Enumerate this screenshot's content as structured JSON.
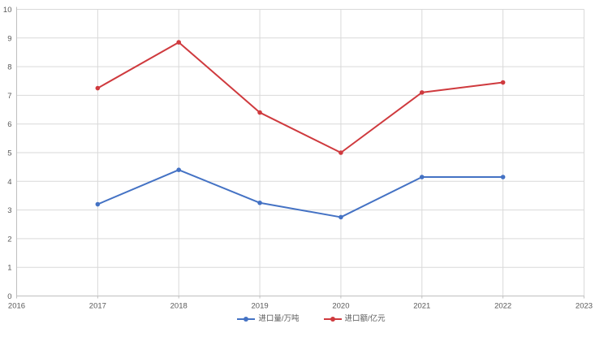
{
  "chart_data": {
    "type": "line",
    "title": "",
    "xlabel": "",
    "ylabel": "",
    "x": [
      2017,
      2018,
      2019,
      2020,
      2021,
      2022
    ],
    "series": [
      {
        "name": "进口量/万吨",
        "color": "#4472C4",
        "values": [
          3.2,
          4.4,
          3.25,
          2.75,
          4.15,
          4.15
        ]
      },
      {
        "name": "进口额/亿元",
        "color": "#CF3A3E",
        "values": [
          7.25,
          8.85,
          6.4,
          5.0,
          7.1,
          7.45
        ]
      }
    ],
    "xlim": [
      2016,
      2023
    ],
    "ylim": [
      0,
      10
    ],
    "x_ticks": [
      "2016",
      "2017",
      "2018",
      "2019",
      "2020",
      "2021",
      "2022",
      "2023"
    ],
    "y_ticks": [
      0,
      1,
      2,
      3,
      4,
      5,
      6,
      7,
      8,
      9,
      10
    ],
    "grid": true,
    "legend_position": "bottom",
    "gridline_color": "#D9D9D9",
    "axis_color": "#BFBFBF",
    "tick_label_color": "#595959",
    "background_color": "#FFFFFF"
  }
}
